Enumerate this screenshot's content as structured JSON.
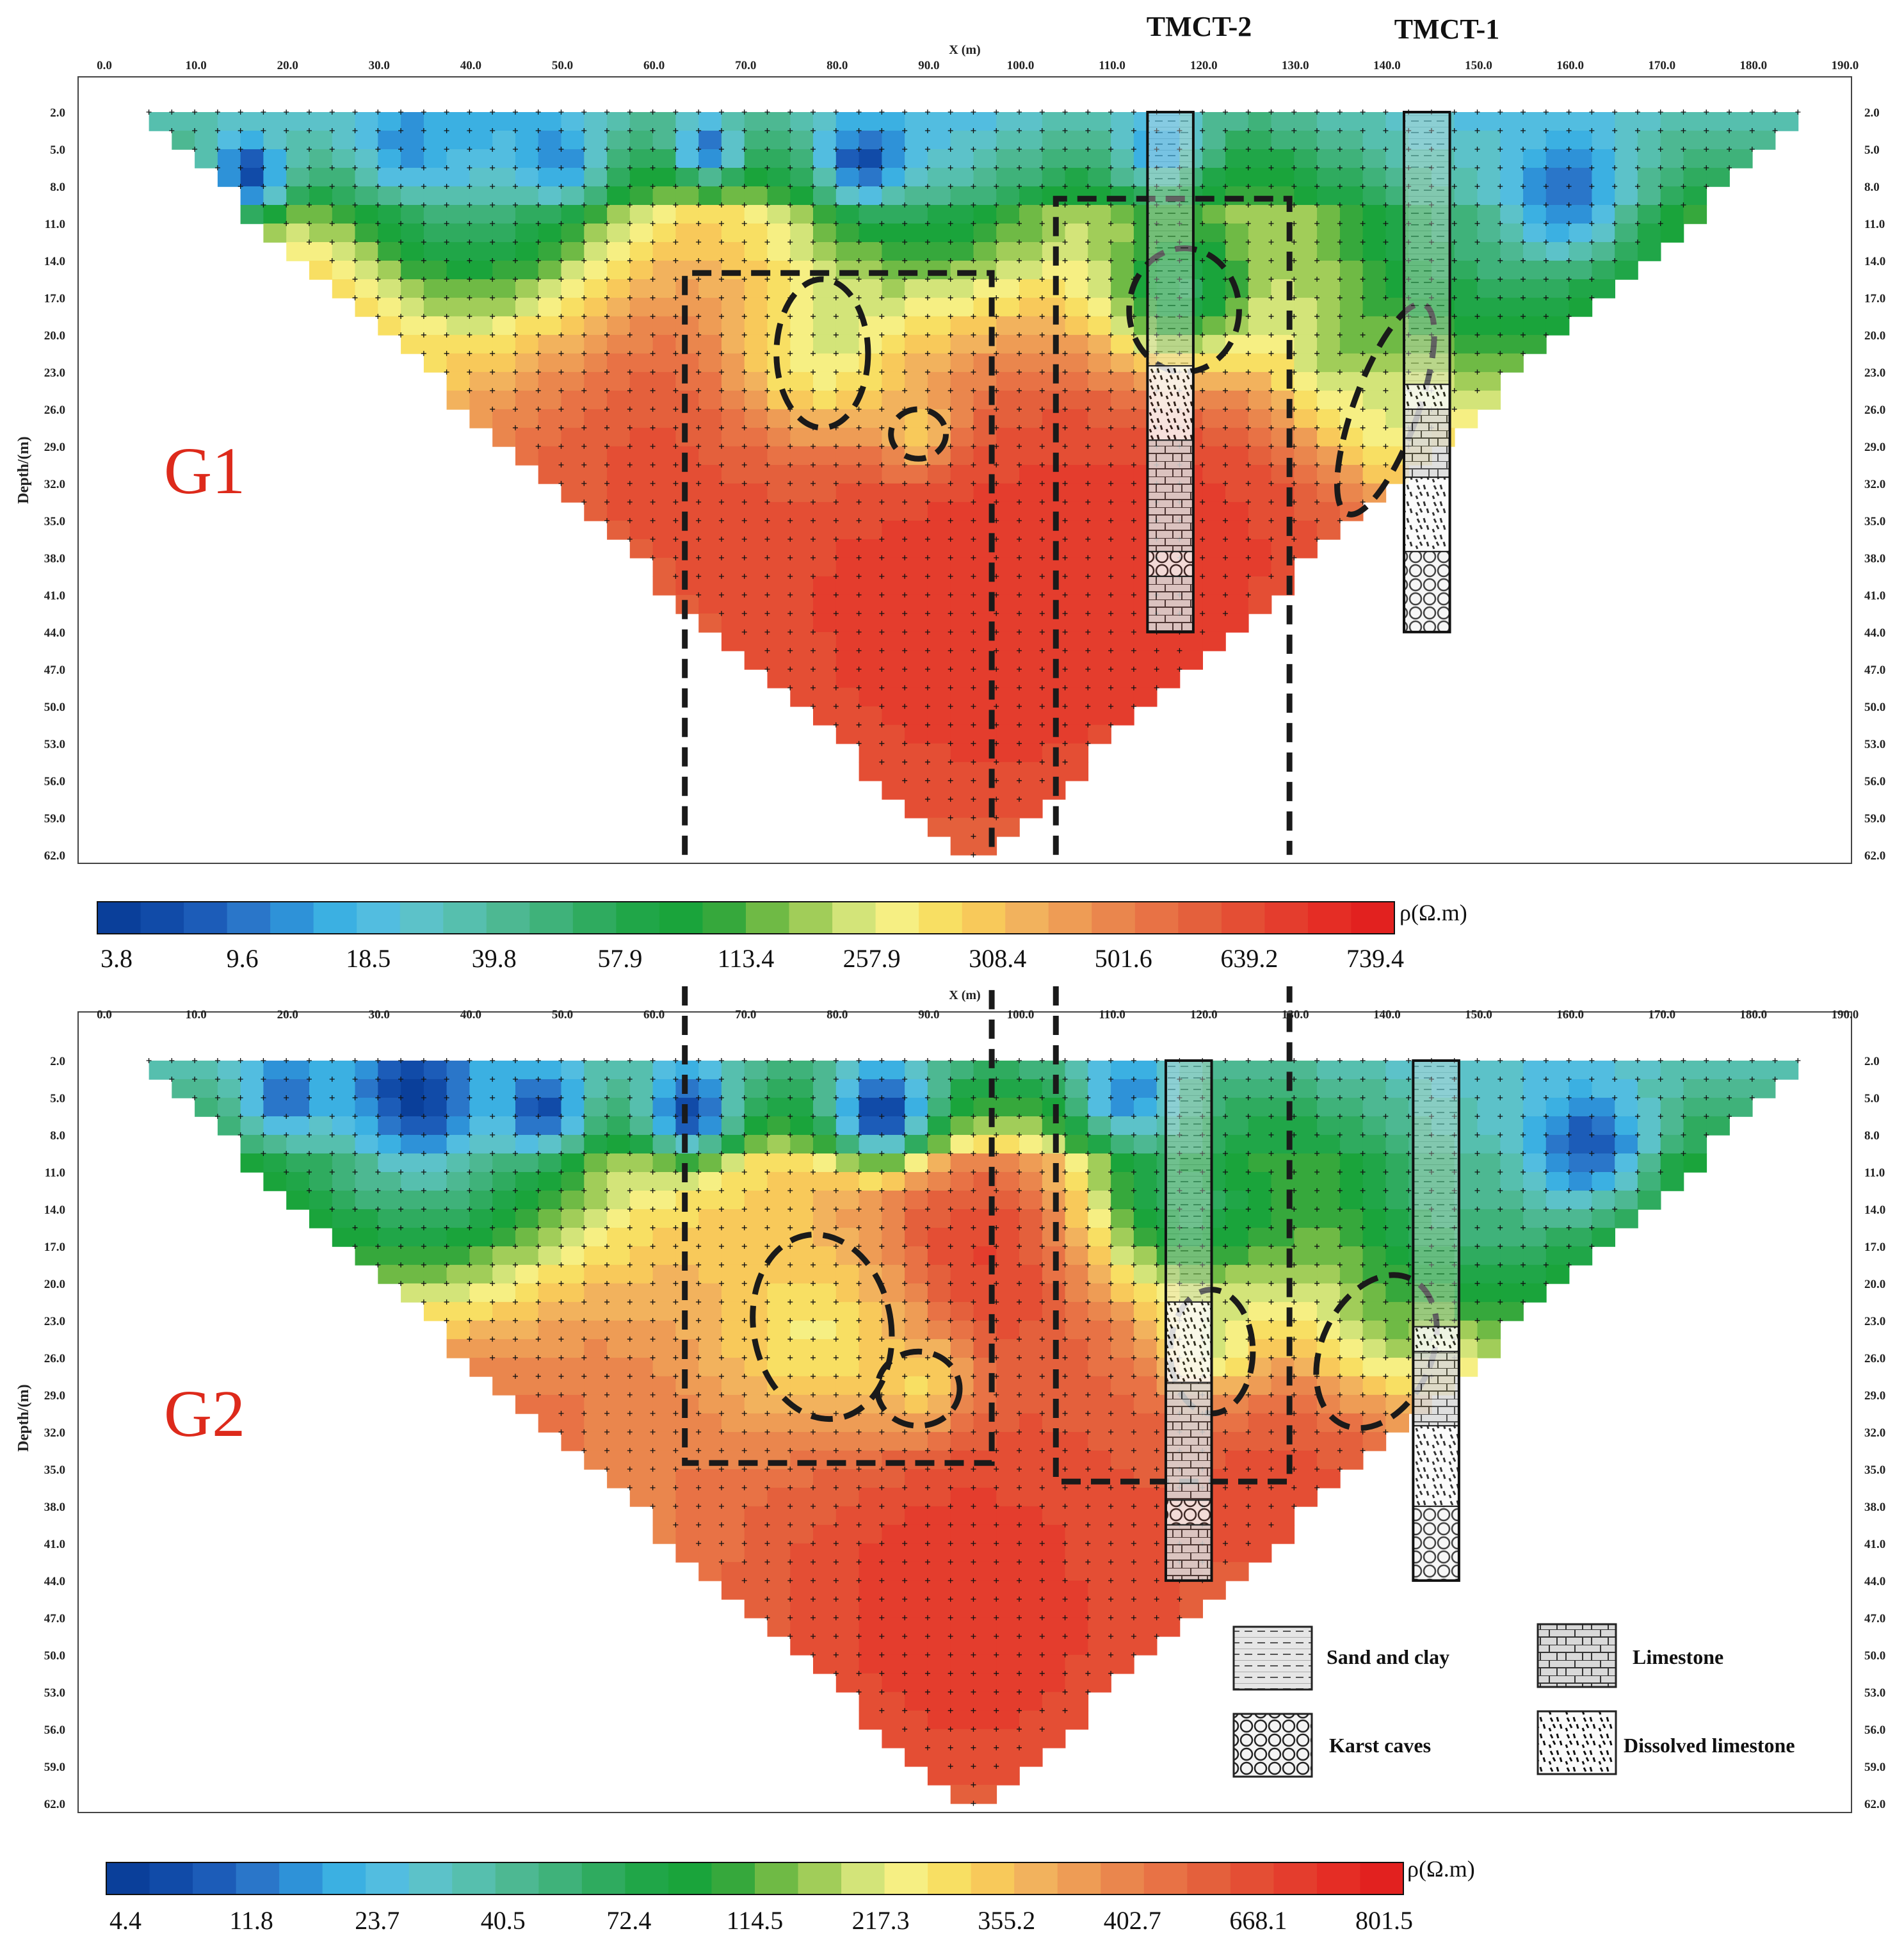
{
  "figure": {
    "boreholes": [
      "TMCT-2",
      "TMCT-1"
    ],
    "legend": {
      "items": [
        {
          "key": "sand",
          "label": "Sand and clay"
        },
        {
          "key": "lime",
          "label": "Limestone"
        },
        {
          "key": "cave",
          "label": "Karst caves"
        },
        {
          "key": "dis",
          "label": "Dissolved limestone"
        }
      ]
    }
  },
  "chart_data": [
    {
      "type": "heatmap",
      "title": "G1",
      "xlabel": "X (m)",
      "ylabel": "Depth/(m)",
      "x_ticks": [
        "0.0",
        "10.0",
        "20.0",
        "30.0",
        "40.0",
        "50.0",
        "60.0",
        "70.0",
        "80.0",
        "90.0",
        "100.0",
        "110.0",
        "120.0",
        "130.0",
        "140.0",
        "150.0",
        "160.0",
        "170.0",
        "180.0",
        "190.0"
      ],
      "y_ticks": [
        "2.0",
        "5.0",
        "8.0",
        "11.0",
        "14.0",
        "17.0",
        "20.0",
        "23.0",
        "26.0",
        "29.0",
        "32.0",
        "35.0",
        "38.0",
        "41.0",
        "44.0",
        "47.0",
        "50.0",
        "53.0",
        "56.0",
        "59.0",
        "62.0"
      ],
      "xlim": [
        0,
        190
      ],
      "ylim": [
        62,
        2
      ],
      "colorbar_label": "ρ(Ω.m)",
      "colorbar_ticks": [
        "3.8",
        "9.6",
        "18.5",
        "39.8",
        "57.9",
        "113.4",
        "257.9",
        "308.4",
        "501.6",
        "639.2",
        "739.4"
      ],
      "section_extent": {
        "top_left_x": 5,
        "top_right_x": 185,
        "top_depth": 2,
        "apex_x": 95,
        "apex_depth": 62
      },
      "boreholes": [
        {
          "name": "TMCT-2",
          "x_range": [
            114,
            119
          ],
          "depth_range": [
            2,
            44
          ],
          "layers": [
            {
              "type": "sand",
              "from": 2,
              "to": 22.5
            },
            {
              "type": "dis",
              "from": 22.5,
              "to": 28.5
            },
            {
              "type": "lime",
              "from": 28.5,
              "to": 37.5
            },
            {
              "type": "cave",
              "from": 37.5,
              "to": 39.5
            },
            {
              "type": "lime",
              "from": 39.5,
              "to": 44
            }
          ]
        },
        {
          "name": "TMCT-1",
          "x_range": [
            142,
            147
          ],
          "depth_range": [
            2,
            44
          ],
          "layers": [
            {
              "type": "sand",
              "from": 2,
              "to": 24
            },
            {
              "type": "dis",
              "from": 24,
              "to": 26
            },
            {
              "type": "lime",
              "from": 26,
              "to": 31.5
            },
            {
              "type": "dis",
              "from": 31.5,
              "to": 37.5
            },
            {
              "type": "cave",
              "from": 37.5,
              "to": 44
            }
          ]
        }
      ],
      "anomalies": [
        {
          "cx": 78.5,
          "cy": 21.5,
          "rx": 5,
          "ry": 6
        },
        {
          "cx": 89,
          "cy": 28,
          "rx": 3,
          "ry": 2
        },
        {
          "cx": 118,
          "cy": 18,
          "rx": 6,
          "ry": 5
        },
        {
          "cx": 140,
          "cy": 26,
          "rx": 3.5,
          "ry": 9,
          "rot": 20
        }
      ],
      "dashed_boxes": [
        {
          "x0": 63.5,
          "x1": 97,
          "d0": 15,
          "d1": 62
        },
        {
          "x0": 104,
          "x1": 129.5,
          "d0": 9,
          "d1": 62
        }
      ],
      "zones": [
        {
          "cx": 95,
          "cy": 42,
          "r": 38,
          "v": 0.93
        },
        {
          "cx": 60,
          "cy": 25,
          "r": 22,
          "v": 0.9
        },
        {
          "cx": 115,
          "cy": 35,
          "r": 22,
          "v": 0.92
        },
        {
          "cx": 28,
          "cy": 16,
          "r": 8,
          "v": 0.85
        },
        {
          "cx": 78,
          "cy": 22,
          "r": 7,
          "v": 0.65
        },
        {
          "cx": 89,
          "cy": 28,
          "r": 3,
          "v": 0.7
        },
        {
          "cx": 118,
          "cy": 16,
          "r": 7,
          "v": 0.4
        },
        {
          "cx": 135,
          "cy": 22,
          "r": 6,
          "v": 0.62
        },
        {
          "cx": 140,
          "cy": 28,
          "r": 4,
          "v": 0.65
        },
        {
          "cx": 40,
          "cy": 6,
          "r": 14,
          "v": 0.3
        },
        {
          "cx": 90,
          "cy": 5,
          "r": 14,
          "v": 0.35
        },
        {
          "cx": 150,
          "cy": 10,
          "r": 14,
          "v": 0.35
        },
        {
          "cx": 160,
          "cy": 9,
          "r": 5,
          "v": 0.12
        },
        {
          "cx": 16,
          "cy": 7,
          "r": 3,
          "v": 0.06
        },
        {
          "cx": 83,
          "cy": 6,
          "r": 3,
          "v": 0.08
        },
        {
          "cx": 66,
          "cy": 5,
          "r": 2.5,
          "v": 0.15
        },
        {
          "cx": 50,
          "cy": 6,
          "r": 3,
          "v": 0.18
        },
        {
          "cx": 33,
          "cy": 5,
          "r": 3,
          "v": 0.2
        },
        {
          "cx": 115,
          "cy": 5,
          "r": 4,
          "v": 0.25
        }
      ]
    },
    {
      "type": "heatmap",
      "title": "G2",
      "xlabel": "X (m)",
      "ylabel": "Depth/(m)",
      "x_ticks": [
        "0.0",
        "10.0",
        "20.0",
        "30.0",
        "40.0",
        "50.0",
        "60.0",
        "70.0",
        "80.0",
        "90.0",
        "100.0",
        "110.0",
        "120.0",
        "130.0",
        "140.0",
        "150.0",
        "160.0",
        "170.0",
        "180.0",
        "190.0"
      ],
      "y_ticks": [
        "2.0",
        "5.0",
        "8.0",
        "11.0",
        "14.0",
        "17.0",
        "20.0",
        "23.0",
        "26.0",
        "29.0",
        "32.0",
        "35.0",
        "38.0",
        "41.0",
        "44.0",
        "47.0",
        "50.0",
        "53.0",
        "56.0",
        "59.0",
        "62.0"
      ],
      "xlim": [
        0,
        190
      ],
      "ylim": [
        62,
        2
      ],
      "colorbar_label": "ρ(Ω.m)",
      "colorbar_ticks": [
        "4.4",
        "11.8",
        "23.7",
        "40.5",
        "72.4",
        "114.5",
        "217.3",
        "355.2",
        "402.7",
        "668.1",
        "801.5"
      ],
      "section_extent": {
        "top_left_x": 5,
        "top_right_x": 185,
        "top_depth": 2,
        "apex_x": 95,
        "apex_depth": 62
      },
      "boreholes": [
        {
          "name": "TMCT-2",
          "x_range": [
            116,
            121
          ],
          "depth_range": [
            2,
            44
          ],
          "layers": [
            {
              "type": "sand",
              "from": 2,
              "to": 21.5
            },
            {
              "type": "dis",
              "from": 21.5,
              "to": 28
            },
            {
              "type": "lime",
              "from": 28,
              "to": 37.5
            },
            {
              "type": "cave",
              "from": 37.5,
              "to": 39.5
            },
            {
              "type": "lime",
              "from": 39.5,
              "to": 44
            }
          ]
        },
        {
          "name": "TMCT-1",
          "x_range": [
            143,
            148
          ],
          "depth_range": [
            2,
            44
          ],
          "layers": [
            {
              "type": "sand",
              "from": 2,
              "to": 23.5
            },
            {
              "type": "dis",
              "from": 23.5,
              "to": 25.5
            },
            {
              "type": "lime",
              "from": 25.5,
              "to": 31.5
            },
            {
              "type": "dis",
              "from": 31.5,
              "to": 38
            },
            {
              "type": "cave",
              "from": 38,
              "to": 44
            }
          ]
        }
      ],
      "anomalies": [
        {
          "cx": 78.5,
          "cy": 23.5,
          "rx": 7.5,
          "ry": 7.5,
          "rot": -10
        },
        {
          "cx": 89,
          "cy": 28.5,
          "rx": 4.5,
          "ry": 3
        },
        {
          "cx": 121,
          "cy": 25.5,
          "rx": 4.5,
          "ry": 5
        },
        {
          "cx": 139,
          "cy": 25.5,
          "rx": 6,
          "ry": 6.5,
          "rot": 25
        }
      ],
      "dashed_boxes": [
        {
          "x0": 63.5,
          "x1": 97,
          "d0": -5,
          "d1": 34.5
        },
        {
          "x0": 104,
          "x1": 129.5,
          "d0": -5,
          "d1": 36
        }
      ],
      "zones": [
        {
          "cx": 95,
          "cy": 46,
          "r": 36,
          "v": 0.93
        },
        {
          "cx": 40,
          "cy": 24,
          "r": 18,
          "v": 0.9
        },
        {
          "cx": 130,
          "cy": 36,
          "r": 16,
          "v": 0.88
        },
        {
          "cx": 95,
          "cy": 18,
          "r": 10,
          "v": 0.92
        },
        {
          "cx": 78,
          "cy": 24,
          "r": 8,
          "v": 0.63
        },
        {
          "cx": 89,
          "cy": 28,
          "r": 4,
          "v": 0.66
        },
        {
          "cx": 121,
          "cy": 25,
          "r": 4,
          "v": 0.6
        },
        {
          "cx": 140,
          "cy": 24,
          "r": 5,
          "v": 0.62
        },
        {
          "cx": 127,
          "cy": 14,
          "r": 9,
          "v": 0.58
        },
        {
          "cx": 118,
          "cy": 13,
          "r": 7,
          "v": 0.38
        },
        {
          "cx": 35,
          "cy": 8,
          "r": 15,
          "v": 0.28
        },
        {
          "cx": 150,
          "cy": 12,
          "r": 12,
          "v": 0.33
        },
        {
          "cx": 162,
          "cy": 9,
          "r": 5,
          "v": 0.08
        },
        {
          "cx": 34,
          "cy": 5,
          "r": 4,
          "v": 0.03
        },
        {
          "cx": 48,
          "cy": 6,
          "r": 3,
          "v": 0.08
        },
        {
          "cx": 64,
          "cy": 6,
          "r": 3.5,
          "v": 0.05
        },
        {
          "cx": 85,
          "cy": 6,
          "r": 4,
          "v": 0.03
        },
        {
          "cx": 20,
          "cy": 5,
          "r": 3,
          "v": 0.14
        },
        {
          "cx": 112,
          "cy": 5,
          "r": 4,
          "v": 0.2
        }
      ]
    }
  ]
}
